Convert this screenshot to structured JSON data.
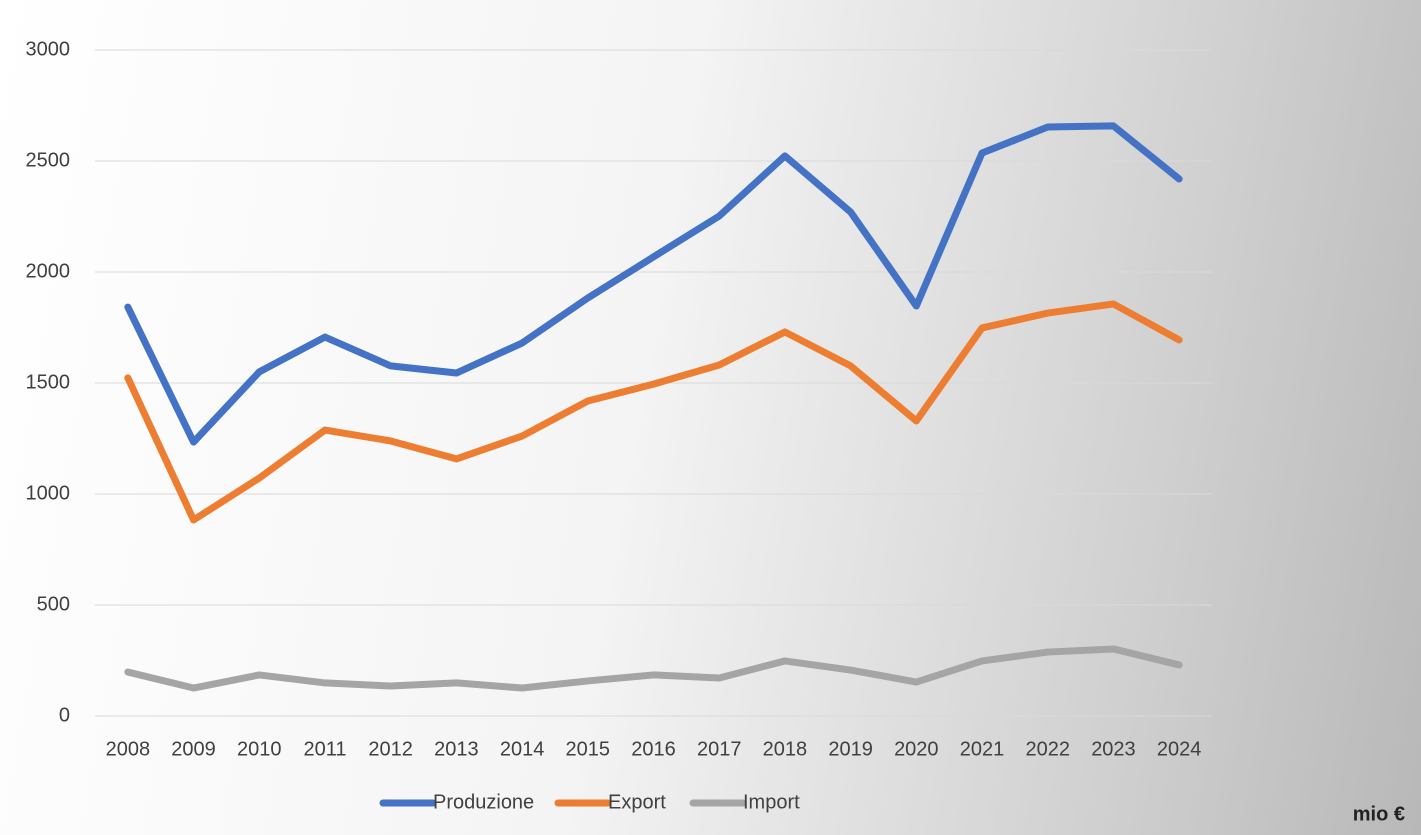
{
  "chart_data": {
    "type": "line",
    "categories": [
      "2008",
      "2009",
      "2010",
      "2011",
      "2012",
      "2013",
      "2014",
      "2015",
      "2016",
      "2017",
      "2018",
      "2019",
      "2020",
      "2021",
      "2022",
      "2023",
      "2024"
    ],
    "series": [
      {
        "name": "Produzione",
        "color": "#4472c4",
        "values": [
          1842,
          1234,
          1550,
          1707,
          1577,
          1545,
          1680,
          1883,
          2068,
          2252,
          2523,
          2270,
          1847,
          2536,
          2653,
          2658,
          2419
        ]
      },
      {
        "name": "Export",
        "color": "#ed7d31",
        "values": [
          1523,
          883,
          1072,
          1288,
          1239,
          1158,
          1261,
          1419,
          1495,
          1581,
          1730,
          1577,
          1329,
          1748,
          1815,
          1856,
          1694
        ]
      },
      {
        "name": "Import",
        "color": "#a5a5a5",
        "values": [
          198,
          126,
          185,
          149,
          135,
          149,
          126,
          158,
          185,
          171,
          248,
          207,
          153,
          248,
          288,
          302,
          230
        ]
      }
    ],
    "ylim": [
      0,
      3000
    ],
    "yticks": [
      0,
      500,
      1000,
      1500,
      2000,
      2500,
      3000
    ],
    "grid": true,
    "legend": "bottom",
    "unit_note": "mio €"
  }
}
